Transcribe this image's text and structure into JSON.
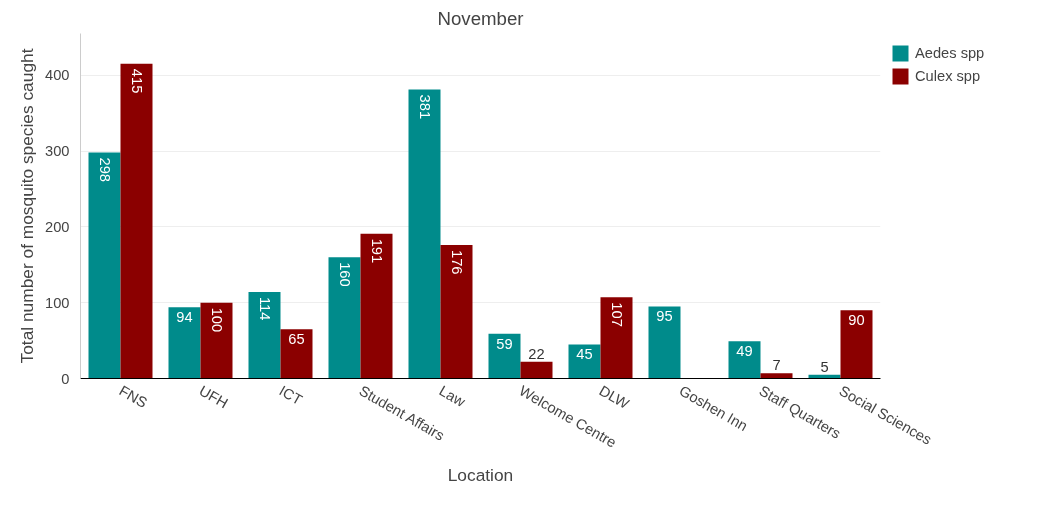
{
  "chart_data": {
    "type": "bar",
    "title": "November",
    "xlabel": "Location",
    "ylabel": "Total number of mosquito species caught",
    "categories": [
      "FNS",
      "UFH",
      "ICT",
      "Student Affairs",
      "Law",
      "Welcome Centre",
      "DLW",
      "Goshen Inn",
      "Staff Quarters",
      "Social Sciences"
    ],
    "series": [
      {
        "name": "Aedes spp",
        "color": "#008b8b",
        "values": [
          298,
          94,
          114,
          160,
          381,
          59,
          45,
          95,
          49,
          5
        ]
      },
      {
        "name": "Culex spp",
        "color": "#8b0000",
        "values": [
          415,
          100,
          65,
          191,
          176,
          22,
          107,
          null,
          7,
          90
        ]
      }
    ],
    "ylim": [
      0,
      455
    ],
    "yticks": [
      0,
      100,
      200,
      300,
      400
    ],
    "grid": "y",
    "legend": "top right",
    "data_labels": true
  }
}
